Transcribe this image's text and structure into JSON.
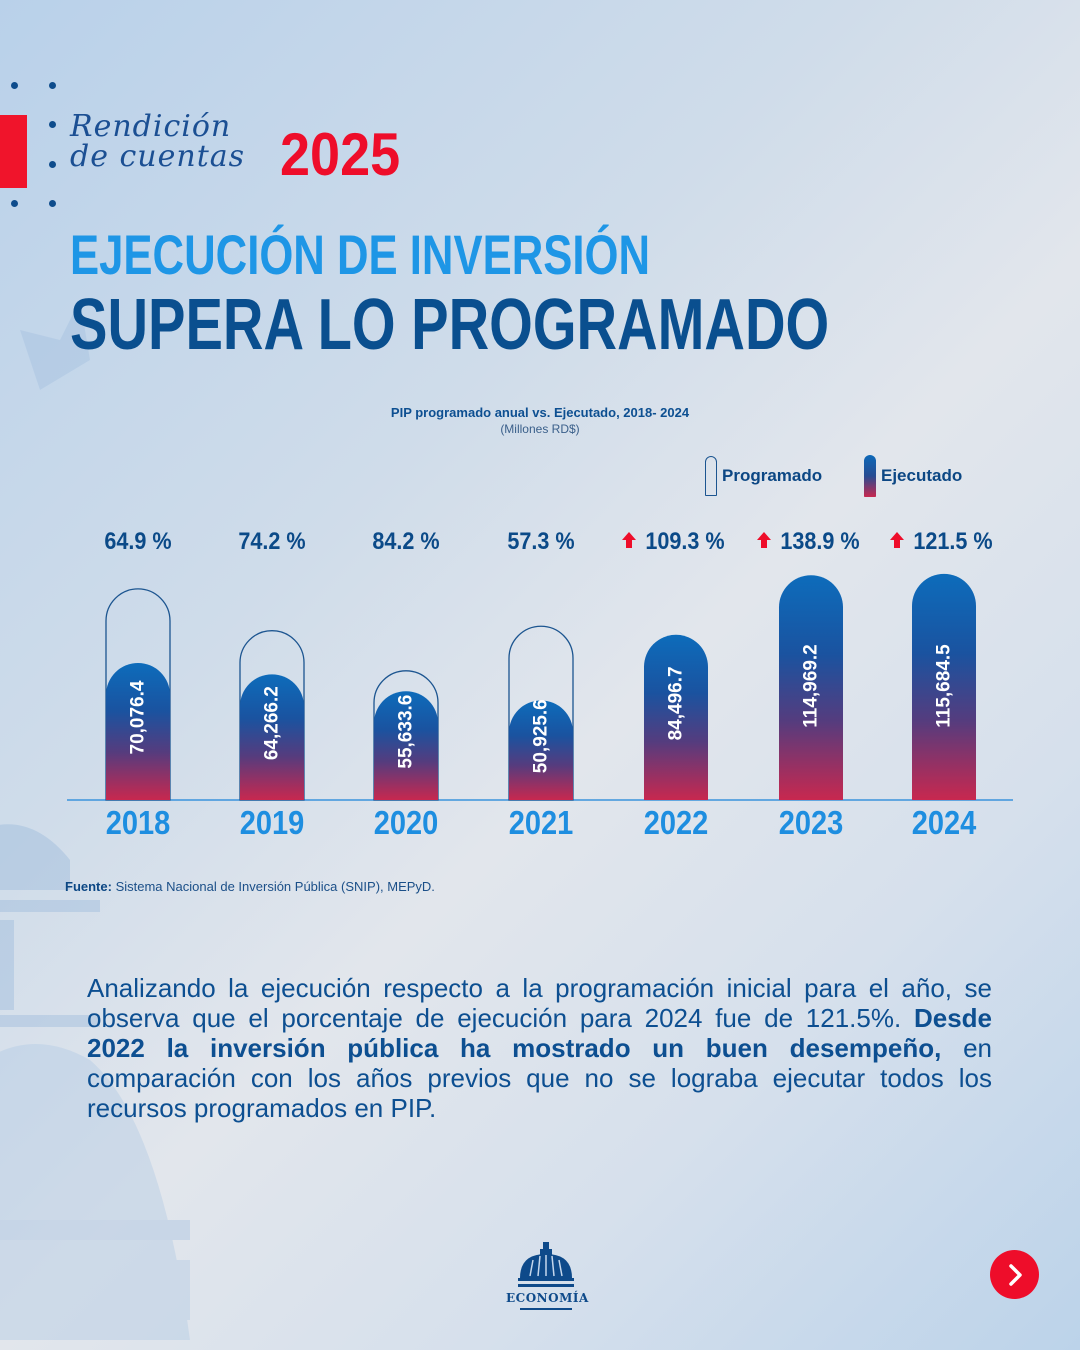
{
  "header": {
    "script_title_line1": "Rendición",
    "script_title_line2": "de cuentas",
    "year": "2025"
  },
  "headline": {
    "line1": "EJECUCIÓN DE INVERSIÓN",
    "line2": "SUPERA LO PROGRAMADO"
  },
  "colors": {
    "accent_red": "#ee0d2a",
    "light_blue": "#1e96e6",
    "dark_blue": "#0a4f8f",
    "bar_top": "#0d69b8",
    "bar_bottom": "#c8284f"
  },
  "chart_data": {
    "type": "bar",
    "title": "PIP programado anual vs. Ejecutado, 2018- 2024",
    "subtitle": "(Millones RD$)",
    "xlabel": "",
    "ylabel": "",
    "legend": [
      "Programado",
      "Ejecutado"
    ],
    "legend_position": "top-right",
    "grid": false,
    "ylim": [
      0,
      120000
    ],
    "categories": [
      "2018",
      "2019",
      "2020",
      "2021",
      "2022",
      "2023",
      "2024"
    ],
    "series": [
      {
        "name": "Ejecutado",
        "values": [
          70076.4,
          64266.2,
          55633.6,
          50925.6,
          84496.7,
          114969.2,
          115684.5
        ],
        "labels": [
          "70,076.4",
          "64,266.2",
          "55,633.6",
          "50,925.6",
          "84,496.7",
          "114,969.2",
          "115,684.5"
        ]
      },
      {
        "name": "Programado",
        "shown_for": [
          "2018",
          "2019",
          "2020",
          "2021"
        ]
      }
    ],
    "execution_pct": [
      64.9,
      74.2,
      84.2,
      57.3,
      109.3,
      138.9,
      121.5
    ],
    "execution_pct_labels": [
      "64.9 %",
      "74.2 %",
      "84.2 %",
      "57.3 %",
      "109.3 %",
      "138.9 %",
      "121.5 %"
    ],
    "above_target": [
      false,
      false,
      false,
      false,
      true,
      true,
      true
    ],
    "annotation_icon": "up-arrow-icon"
  },
  "source": {
    "label": "Fuente:",
    "text": "Sistema Nacional de Inversión Pública (SNIP), MEPyD."
  },
  "body": {
    "part1": "Analizando la ejecución respecto a la programación inicial para el año, se observa que el porcentaje de ejecución para 2024 fue de 121.5%. ",
    "bold": "Desde 2022 la inversión pública ha mostrado un buen desempeño,",
    "part2": " en comparación con los años previos que no se lograba ejecutar todos los recursos programados en PIP."
  },
  "footer": {
    "logo_text": "ECONOMÍA",
    "next_icon": "chevron-right-icon"
  }
}
